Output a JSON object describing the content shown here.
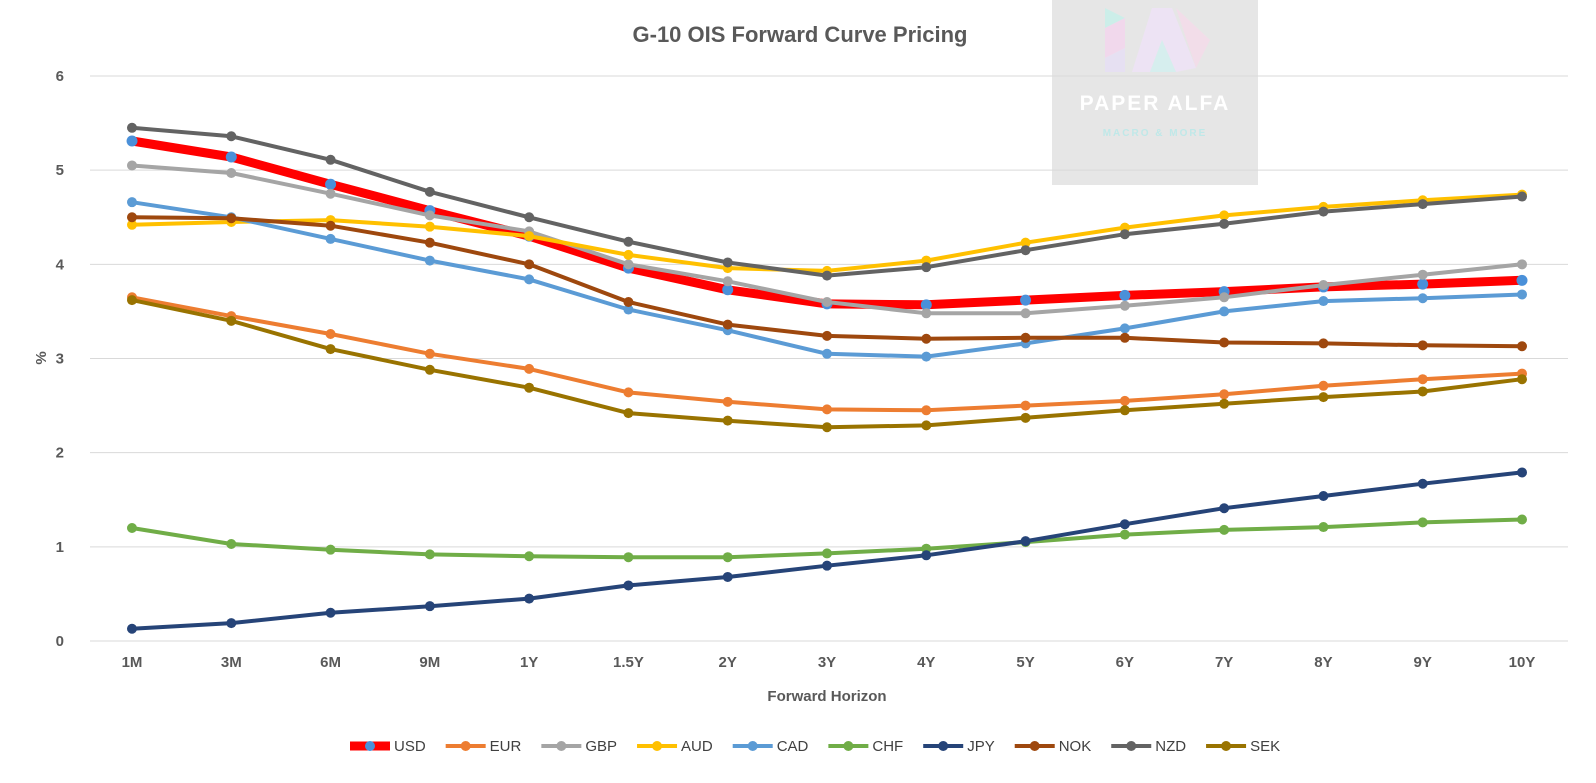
{
  "chart_data": {
    "type": "line",
    "title": "G-10 OIS Forward Curve Pricing",
    "xlabel": "Forward Horizon",
    "ylabel": "%",
    "categories": [
      "1M",
      "3M",
      "6M",
      "9M",
      "1Y",
      "1.5Y",
      "2Y",
      "3Y",
      "4Y",
      "5Y",
      "6Y",
      "7Y",
      "8Y",
      "9Y",
      "10Y"
    ],
    "ylim": [
      0,
      6
    ],
    "yticks": [
      "0",
      "1",
      "2",
      "3",
      "4",
      "5",
      "6"
    ],
    "grid": "horizontal",
    "legend_position": "bottom",
    "series": [
      {
        "name": "USD",
        "color": "#ff0000",
        "marker_color": "#4a90d9",
        "values": [
          5.31,
          5.14,
          4.85,
          4.57,
          4.3,
          3.96,
          3.73,
          3.58,
          3.57,
          3.62,
          3.67,
          3.71,
          3.76,
          3.79,
          3.83
        ]
      },
      {
        "name": "EUR",
        "color": "#ed7d31",
        "values": [
          3.65,
          3.45,
          3.26,
          3.05,
          2.89,
          2.64,
          2.54,
          2.46,
          2.45,
          2.5,
          2.55,
          2.62,
          2.71,
          2.78,
          2.84
        ]
      },
      {
        "name": "GBP",
        "color": "#a5a5a5",
        "values": [
          5.05,
          4.97,
          4.75,
          4.52,
          4.35,
          4.0,
          3.82,
          3.6,
          3.48,
          3.48,
          3.56,
          3.65,
          3.78,
          3.89,
          4.0
        ]
      },
      {
        "name": "AUD",
        "color": "#ffc000",
        "values": [
          4.42,
          4.45,
          4.47,
          4.4,
          4.3,
          4.1,
          3.96,
          3.93,
          4.04,
          4.23,
          4.39,
          4.52,
          4.61,
          4.68,
          4.74
        ]
      },
      {
        "name": "CAD",
        "color": "#5b9bd5",
        "values": [
          4.66,
          4.5,
          4.27,
          4.04,
          3.84,
          3.52,
          3.3,
          3.05,
          3.02,
          3.16,
          3.32,
          3.5,
          3.61,
          3.64,
          3.68
        ]
      },
      {
        "name": "CHF",
        "color": "#70ad47",
        "values": [
          1.2,
          1.03,
          0.97,
          0.92,
          0.9,
          0.89,
          0.89,
          0.93,
          0.98,
          1.05,
          1.13,
          1.18,
          1.21,
          1.26,
          1.29
        ]
      },
      {
        "name": "JPY",
        "color": "#264478",
        "values": [
          0.13,
          0.19,
          0.3,
          0.37,
          0.45,
          0.59,
          0.68,
          0.8,
          0.91,
          1.06,
          1.24,
          1.41,
          1.54,
          1.67,
          1.79
        ]
      },
      {
        "name": "NOK",
        "color": "#9e480e",
        "values": [
          4.5,
          4.49,
          4.41,
          4.23,
          4.0,
          3.6,
          3.36,
          3.24,
          3.21,
          3.22,
          3.22,
          3.17,
          3.16,
          3.14,
          3.13
        ]
      },
      {
        "name": "NZD",
        "color": "#636363",
        "values": [
          5.45,
          5.36,
          5.11,
          4.77,
          4.5,
          4.24,
          4.02,
          3.88,
          3.97,
          4.15,
          4.32,
          4.43,
          4.56,
          4.64,
          4.72
        ]
      },
      {
        "name": "SEK",
        "color": "#997300",
        "values": [
          3.62,
          3.4,
          3.1,
          2.88,
          2.69,
          2.42,
          2.34,
          2.27,
          2.29,
          2.37,
          2.45,
          2.52,
          2.59,
          2.65,
          2.78
        ]
      }
    ]
  },
  "watermark": {
    "brand": "PAPER ALFA",
    "tagline": "MACRO & MORE",
    "box_color": "#e6e6e6",
    "text_color": "#ffffff",
    "tagline_color": "#bfe8e8"
  }
}
